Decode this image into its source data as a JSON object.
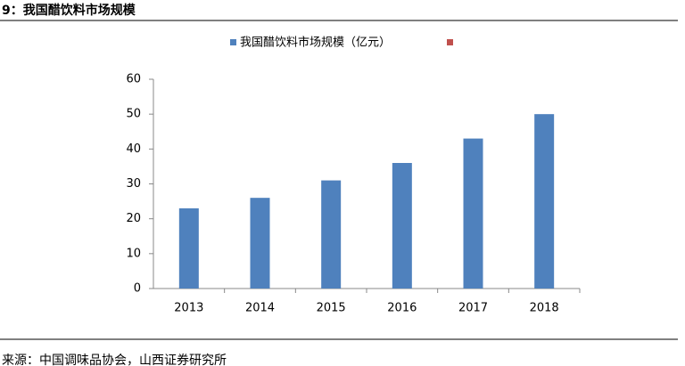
{
  "chart_data": {
    "type": "bar",
    "title": "9：我国醋饮料市场规模",
    "source": "来源：中国调味品协会，山西证券研究所",
    "categories": [
      "2013",
      "2014",
      "2015",
      "2016",
      "2017",
      "2018"
    ],
    "series": [
      {
        "name": "我国醋饮料市场规模（亿元）",
        "color": "#4f81bd",
        "values": [
          23,
          26,
          31,
          36,
          43,
          50
        ]
      }
    ],
    "ylim": [
      0,
      60
    ],
    "yticks": [
      0,
      10,
      20,
      30,
      40,
      50,
      60
    ],
    "grid": false
  }
}
